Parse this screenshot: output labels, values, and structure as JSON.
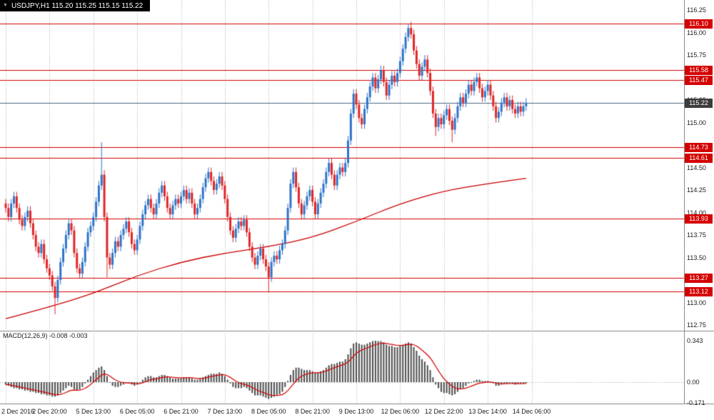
{
  "window": {
    "title": "USDJPY,H1 115.20 115.25 115.15 115.22",
    "symbol": "USDJPY",
    "timeframe": "H1",
    "bar_open": "115.20",
    "bar_high": "115.25",
    "bar_low": "115.15",
    "bar_close": "115.22"
  },
  "icons": {
    "collapse": "▼"
  },
  "indicator": {
    "caption": "MACD(12,26,9) -0.008 -0.003",
    "name": "MACD(12,26,9)",
    "value": "-0.008",
    "signal_value": "-0.003"
  },
  "colors": {
    "bull": "#2e74c9",
    "bear": "#e02525",
    "level_line": "#d40000",
    "level_tag_bg": "#d40000",
    "current_line": "#4a6785",
    "current_tag_bg": "#3c3c3c",
    "ma_line": "#cc0000",
    "macd_bar": "#4d4d4d",
    "macd_signal": "#d40000",
    "grid": "#a8a8a8",
    "axis_text": "#1a1a1a",
    "title_bg": "#000000",
    "title_text": "#ffffff"
  },
  "price_axis_labels": [
    "116.25",
    "116.00",
    "115.75",
    "115.25",
    "115.00",
    "114.50",
    "114.25",
    "114.00",
    "113.75",
    "113.50",
    "113.00",
    "112.75"
  ],
  "macd_axis_labels": [
    {
      "value": 0.343,
      "label": "0.343"
    },
    {
      "value": 0,
      "label": "0.00"
    },
    {
      "value": -0.171,
      "label": "-0.171"
    }
  ],
  "chart_data": {
    "type": "candlestick",
    "title": "USDJPY,H1",
    "xlabel": "time",
    "ylabel": "price",
    "price_range": {
      "max": 116.25,
      "min": 112.75
    },
    "candles_per_tick": 16,
    "time_ticks": [
      {
        "i": 0,
        "label": "2 Dec 2016"
      },
      {
        "i": 16,
        "label": "2 Dec 20:00"
      },
      {
        "i": 32,
        "label": "5 Dec 13:00"
      },
      {
        "i": 48,
        "label": "6 Dec 05:00"
      },
      {
        "i": 64,
        "label": "6 Dec 21:00"
      },
      {
        "i": 80,
        "label": "7 Dec 13:00"
      },
      {
        "i": 96,
        "label": "8 Dec 05:00"
      },
      {
        "i": 112,
        "label": "8 Dec 21:00"
      },
      {
        "i": 128,
        "label": "9 Dec 13:00"
      },
      {
        "i": 144,
        "label": "12 Dec 06:00"
      },
      {
        "i": 160,
        "label": "12 Dec 22:00"
      },
      {
        "i": 176,
        "label": "13 Dec 14:00"
      },
      {
        "i": 192,
        "label": "14 Dec 06:00"
      }
    ],
    "first_open": 114.1,
    "default_wick": 0.05,
    "closes": [
      114.05,
      113.95,
      114.1,
      114.18,
      114.05,
      113.92,
      113.85,
      113.95,
      114.02,
      113.88,
      113.75,
      113.62,
      113.55,
      113.65,
      113.48,
      113.38,
      113.3,
      113.18,
      113.05,
      113.25,
      113.45,
      113.6,
      113.75,
      113.88,
      113.8,
      113.55,
      113.38,
      113.32,
      113.45,
      113.62,
      113.78,
      113.85,
      113.95,
      114.12,
      114.3,
      114.42,
      113.95,
      113.5,
      113.42,
      113.55,
      113.68,
      113.62,
      113.75,
      113.82,
      113.9,
      113.78,
      113.65,
      113.58,
      113.7,
      113.85,
      113.98,
      114.08,
      114.15,
      114.05,
      113.98,
      114.1,
      114.22,
      114.3,
      114.18,
      114.05,
      113.98,
      114.08,
      114.15,
      114.1,
      114.18,
      114.25,
      114.15,
      114.22,
      114.1,
      113.98,
      114.05,
      114.15,
      114.28,
      114.38,
      114.45,
      114.35,
      114.25,
      114.32,
      114.4,
      114.3,
      114.15,
      113.95,
      113.8,
      113.72,
      113.82,
      113.9,
      113.85,
      113.92,
      113.78,
      113.62,
      113.5,
      113.42,
      113.52,
      113.6,
      113.48,
      113.4,
      113.28,
      113.45,
      113.52,
      113.48,
      113.58,
      113.65,
      113.8,
      114.05,
      114.32,
      114.45,
      114.28,
      114.1,
      113.98,
      114.08,
      114.18,
      114.25,
      114.12,
      113.98,
      114.1,
      114.22,
      114.32,
      114.45,
      114.55,
      114.42,
      114.3,
      114.42,
      114.5,
      114.45,
      114.55,
      114.8,
      115.1,
      115.32,
      115.2,
      115.05,
      114.98,
      115.15,
      115.28,
      115.4,
      115.5,
      115.38,
      115.48,
      115.58,
      115.45,
      115.3,
      115.42,
      115.52,
      115.45,
      115.55,
      115.68,
      115.82,
      115.95,
      116.05,
      115.98,
      115.8,
      115.65,
      115.52,
      115.62,
      115.7,
      115.55,
      115.35,
      115.1,
      114.95,
      115.05,
      114.98,
      115.08,
      115.15,
      115.02,
      114.92,
      115.05,
      115.18,
      115.28,
      115.22,
      115.32,
      115.42,
      115.35,
      115.45,
      115.5,
      115.38,
      115.28,
      115.35,
      115.42,
      115.3,
      115.18,
      115.05,
      115.12,
      115.22,
      115.28,
      115.18,
      115.25,
      115.15,
      115.1,
      115.18,
      115.12,
      115.18,
      115.22
    ],
    "wick_overrides": {
      "18": {
        "l": 112.87
      },
      "35": {
        "h": 114.78
      },
      "37": {
        "l": 113.28
      },
      "96": {
        "l": 113.12
      },
      "148": {
        "h": 116.12
      },
      "157": {
        "l": 114.85
      },
      "163": {
        "l": 114.78
      }
    },
    "ma_points": [
      [
        0,
        112.82
      ],
      [
        16,
        112.95
      ],
      [
        32,
        113.1
      ],
      [
        48,
        113.3
      ],
      [
        64,
        113.45
      ],
      [
        80,
        113.55
      ],
      [
        96,
        113.62
      ],
      [
        112,
        113.72
      ],
      [
        128,
        113.9
      ],
      [
        144,
        114.1
      ],
      [
        160,
        114.24
      ],
      [
        176,
        114.32
      ],
      [
        190,
        114.38
      ]
    ],
    "levels": [
      116.1,
      115.58,
      115.47,
      114.73,
      114.61,
      113.93,
      113.27,
      113.12
    ],
    "current_price": 115.22,
    "macd": {
      "signal_period": 9,
      "range": {
        "max": 0.343,
        "min": -0.171
      },
      "histogram": [
        -0.02,
        -0.03,
        -0.04,
        -0.05,
        -0.05,
        -0.06,
        -0.06,
        -0.07,
        -0.07,
        -0.08,
        -0.08,
        -0.09,
        -0.09,
        -0.1,
        -0.1,
        -0.11,
        -0.11,
        -0.12,
        -0.12,
        -0.11,
        -0.09,
        -0.07,
        -0.05,
        -0.03,
        -0.04,
        -0.06,
        -0.07,
        -0.06,
        -0.04,
        -0.01,
        0.02,
        0.05,
        0.08,
        0.1,
        0.12,
        0.13,
        0.1,
        0.05,
        0.0,
        -0.03,
        -0.04,
        -0.04,
        -0.03,
        -0.02,
        -0.01,
        -0.01,
        -0.02,
        -0.03,
        -0.02,
        0.0,
        0.02,
        0.04,
        0.05,
        0.05,
        0.04,
        0.04,
        0.05,
        0.06,
        0.06,
        0.05,
        0.04,
        0.03,
        0.03,
        0.03,
        0.03,
        0.04,
        0.04,
        0.04,
        0.03,
        0.02,
        0.02,
        0.03,
        0.04,
        0.05,
        0.06,
        0.07,
        0.07,
        0.07,
        0.08,
        0.07,
        0.05,
        0.02,
        -0.01,
        -0.04,
        -0.05,
        -0.05,
        -0.05,
        -0.04,
        -0.05,
        -0.07,
        -0.09,
        -0.11,
        -0.11,
        -0.11,
        -0.12,
        -0.13,
        -0.14,
        -0.13,
        -0.12,
        -0.11,
        -0.1,
        -0.08,
        -0.04,
        0.01,
        0.06,
        0.1,
        0.12,
        0.12,
        0.11,
        0.1,
        0.1,
        0.1,
        0.09,
        0.08,
        0.08,
        0.09,
        0.1,
        0.12,
        0.14,
        0.15,
        0.15,
        0.16,
        0.17,
        0.17,
        0.19,
        0.23,
        0.28,
        0.32,
        0.33,
        0.32,
        0.31,
        0.31,
        0.32,
        0.33,
        0.34,
        0.343,
        0.34,
        0.34,
        0.33,
        0.31,
        0.3,
        0.3,
        0.29,
        0.29,
        0.3,
        0.31,
        0.32,
        0.33,
        0.32,
        0.29,
        0.26,
        0.22,
        0.19,
        0.17,
        0.14,
        0.1,
        0.04,
        -0.02,
        -0.05,
        -0.08,
        -0.09,
        -0.09,
        -0.1,
        -0.11,
        -0.1,
        -0.08,
        -0.06,
        -0.05,
        -0.03,
        -0.01,
        0.0,
        0.01,
        0.02,
        0.02,
        0.01,
        0.01,
        0.01,
        0.0,
        -0.01,
        -0.03,
        -0.03,
        -0.02,
        -0.01,
        -0.01,
        -0.01,
        -0.01,
        -0.02,
        -0.01,
        -0.01,
        -0.01,
        -0.008
      ]
    }
  }
}
